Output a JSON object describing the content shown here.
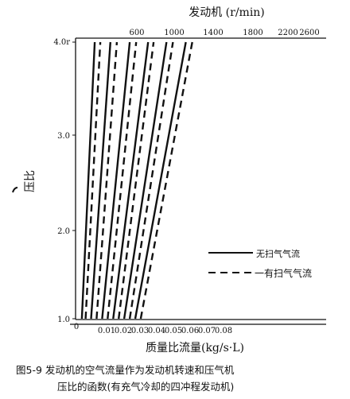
{
  "chart_data": {
    "type": "line",
    "title": "发动机 (r/min)",
    "xlabel": "质量比流量(kg/s·L)",
    "ylabel": "压比",
    "xlim": [
      0,
      0.08
    ],
    "ylim": [
      1.0,
      4.0
    ],
    "x_ticks": [
      "0",
      "0.01",
      "0.02",
      "0.03",
      "0.04",
      "0.05",
      "0.06",
      "0.07",
      "0.08"
    ],
    "y_ticks": [
      "1.0",
      "2.0",
      "3.0",
      "4.0r"
    ],
    "speed_labels": [
      "600",
      "1000",
      "1400",
      "1800",
      "2200",
      "2600"
    ],
    "legend": {
      "position": "right-middle",
      "solid_label": "无扫气气流",
      "dashed_label": "一有扫气气流"
    },
    "series": [
      {
        "speed": "600",
        "style": "solid",
        "x": [
          0.003,
          0.01
        ],
        "y": [
          1.0,
          4.0
        ]
      },
      {
        "speed": "600",
        "style": "dashed",
        "x": [
          0.005,
          0.013
        ],
        "y": [
          1.0,
          4.0
        ]
      },
      {
        "speed": "1000",
        "style": "solid",
        "x": [
          0.008,
          0.0185
        ],
        "y": [
          1.0,
          4.0
        ]
      },
      {
        "speed": "1000",
        "style": "dashed",
        "x": [
          0.011,
          0.022
        ],
        "y": [
          1.0,
          4.0
        ]
      },
      {
        "speed": "1400",
        "style": "solid",
        "x": [
          0.014,
          0.029
        ],
        "y": [
          1.0,
          4.0
        ]
      },
      {
        "speed": "1400",
        "style": "dashed",
        "x": [
          0.017,
          0.0325
        ],
        "y": [
          1.0,
          4.0
        ]
      },
      {
        "speed": "1800",
        "style": "solid",
        "x": [
          0.02,
          0.039
        ],
        "y": [
          1.0,
          4.0
        ]
      },
      {
        "speed": "1800",
        "style": "dashed",
        "x": [
          0.023,
          0.042
        ],
        "y": [
          1.0,
          4.0
        ]
      },
      {
        "speed": "2200",
        "style": "solid",
        "x": [
          0.026,
          0.049
        ],
        "y": [
          1.0,
          4.0
        ]
      },
      {
        "speed": "2200",
        "style": "dashed",
        "x": [
          0.029,
          0.0525
        ],
        "y": [
          1.0,
          4.0
        ]
      },
      {
        "speed": "2600",
        "style": "solid",
        "x": [
          0.032,
          0.0595
        ],
        "y": [
          1.0,
          4.0
        ]
      },
      {
        "speed": "2600",
        "style": "dashed",
        "x": [
          0.035,
          0.063
        ],
        "y": [
          1.0,
          4.0
        ]
      }
    ]
  },
  "caption": {
    "line1": "图5-9   发动机的空气流量作为发动机转速和压气机",
    "line2": "压比的函数(有充气冷却的四冲程发动机)"
  },
  "colors": {
    "line": "#111111",
    "background": "#ffffff"
  }
}
